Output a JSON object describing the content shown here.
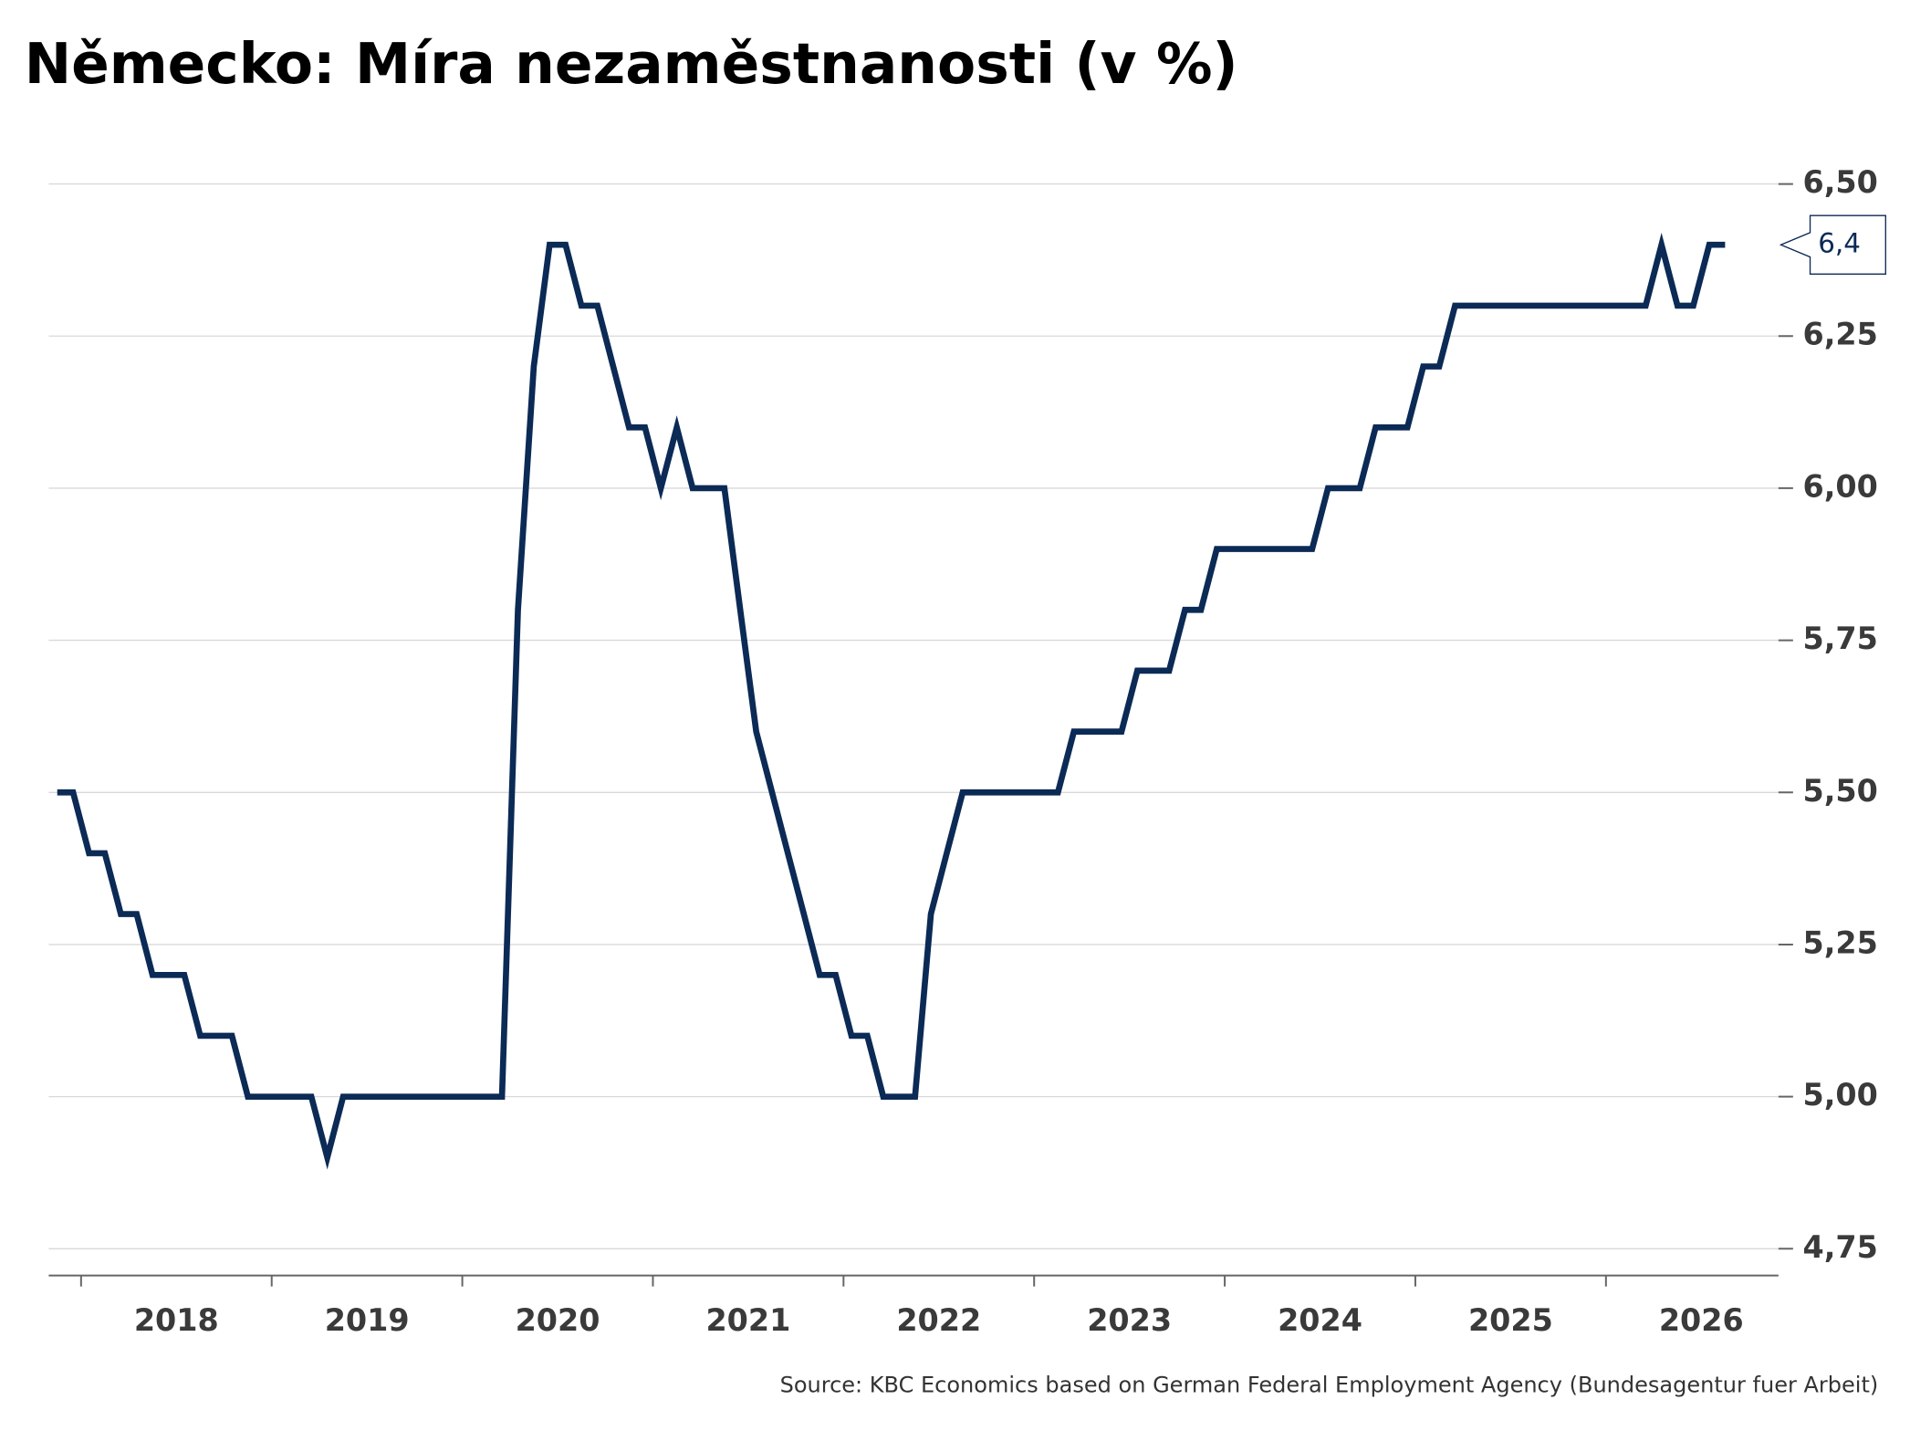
{
  "chart_data": {
    "type": "line",
    "title": "Německo: Míra nezaměstnanosti (v %)",
    "source": "Source: KBC Economics based on German Federal Employment Agency (Bundesagentur fuer Arbeit)",
    "year_labels": [
      "2018",
      "2019",
      "2020",
      "2021",
      "2022",
      "2023",
      "2024",
      "2025",
      "2026"
    ],
    "series": [
      {
        "name": "Míra nezaměstnanosti",
        "color": "#0b2a55",
        "values": [
          5.5,
          5.5,
          5.4,
          5.4,
          5.3,
          5.3,
          5.2,
          5.2,
          5.2,
          5.1,
          5.1,
          5.1,
          5.0,
          5.0,
          5.0,
          5.0,
          5.0,
          4.9,
          5.0,
          5.0,
          5.0,
          5.0,
          5.0,
          5.0,
          5.0,
          5.0,
          5.0,
          5.0,
          5.0,
          5.8,
          6.2,
          6.4,
          6.4,
          6.3,
          6.3,
          6.2,
          6.1,
          6.1,
          6.0,
          6.1,
          6.0,
          6.0,
          6.0,
          5.8,
          5.6,
          5.5,
          5.4,
          5.3,
          5.2,
          5.2,
          5.1,
          5.1,
          5.0,
          5.0,
          5.0,
          5.3,
          5.4,
          5.5,
          5.5,
          5.5,
          5.5,
          5.5,
          5.5,
          5.5,
          5.6,
          5.6,
          5.6,
          5.6,
          5.7,
          5.7,
          5.7,
          5.8,
          5.8,
          5.9,
          5.9,
          5.9,
          5.9,
          5.9,
          5.9,
          5.9,
          6.0,
          6.0,
          6.0,
          6.1,
          6.1,
          6.1,
          6.2,
          6.2,
          6.3,
          6.3,
          6.3,
          6.3,
          6.3,
          6.3,
          6.3,
          6.3,
          6.3,
          6.3,
          6.3,
          6.3,
          6.3,
          6.4,
          6.3,
          6.3,
          6.4,
          6.4
        ]
      }
    ],
    "end_label": "6,4",
    "ylim": [
      4.7,
      6.55
    ],
    "yticks": [
      {
        "value": 4.75,
        "label": "4,75"
      },
      {
        "value": 5,
        "label": "5,00"
      },
      {
        "value": 5.25,
        "label": "5,25"
      },
      {
        "value": 5.5,
        "label": "5,50"
      },
      {
        "value": 5.75,
        "label": "5,75"
      },
      {
        "value": 6,
        "label": "6,00"
      },
      {
        "value": 6.25,
        "label": "6,25"
      },
      {
        "value": 6.5,
        "label": "6,50"
      }
    ],
    "grid": true
  }
}
